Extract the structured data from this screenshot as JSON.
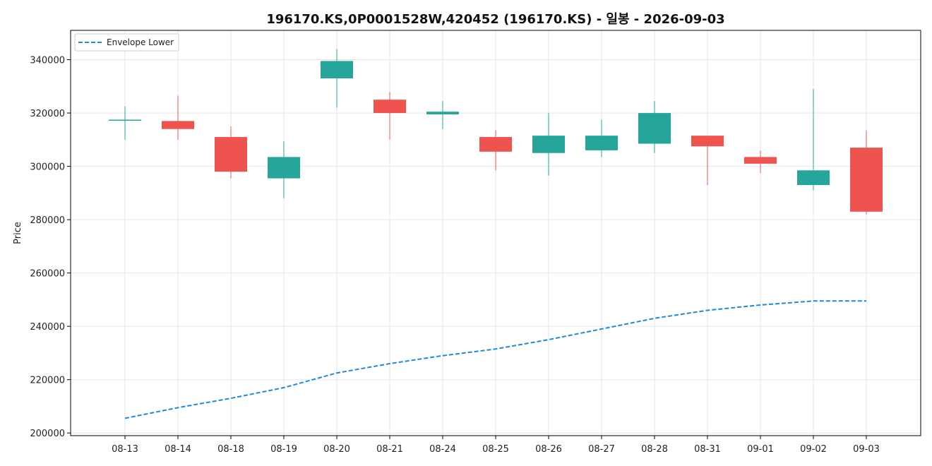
{
  "chart_data": {
    "type": "candlestick",
    "title": "196170.KS,0P0001528W,420452 (196170.KS) - 일봉 - 2026-09-03",
    "xlabel": "",
    "ylabel": "Price",
    "ylim": [
      199000,
      351000
    ],
    "yticks": [
      200000,
      220000,
      240000,
      260000,
      280000,
      300000,
      320000,
      340000
    ],
    "grid": true,
    "legend_position": "top-left",
    "colors": {
      "up": "#26a69a",
      "down": "#ef5350",
      "envelope": "#1e88e5"
    },
    "categories": [
      "08-13",
      "08-14",
      "08-18",
      "08-19",
      "08-20",
      "08-21",
      "08-24",
      "08-25",
      "08-26",
      "08-27",
      "08-28",
      "08-31",
      "09-01",
      "09-02",
      "09-03"
    ],
    "candles": [
      {
        "date": "08-13",
        "open": 317500,
        "high": 322500,
        "low": 310000,
        "close": 317500
      },
      {
        "date": "08-14",
        "open": 317000,
        "high": 326500,
        "low": 310000,
        "close": 314000
      },
      {
        "date": "08-18",
        "open": 311000,
        "high": 315000,
        "low": 295500,
        "close": 298000
      },
      {
        "date": "08-19",
        "open": 295500,
        "high": 309500,
        "low": 288000,
        "close": 303500
      },
      {
        "date": "08-20",
        "open": 333000,
        "high": 344000,
        "low": 322000,
        "close": 339500
      },
      {
        "date": "08-21",
        "open": 325000,
        "high": 328000,
        "low": 310000,
        "close": 320000
      },
      {
        "date": "08-24",
        "open": 319500,
        "high": 324500,
        "low": 314000,
        "close": 320500
      },
      {
        "date": "08-25",
        "open": 311000,
        "high": 313500,
        "low": 298500,
        "close": 305500
      },
      {
        "date": "08-26",
        "open": 305000,
        "high": 320000,
        "low": 296500,
        "close": 311500
      },
      {
        "date": "08-27",
        "open": 306000,
        "high": 317500,
        "low": 303500,
        "close": 311500
      },
      {
        "date": "08-28",
        "open": 308500,
        "high": 324500,
        "low": 305000,
        "close": 320000
      },
      {
        "date": "08-31",
        "open": 311500,
        "high": 311500,
        "low": 293000,
        "close": 307500
      },
      {
        "date": "09-01",
        "open": 303500,
        "high": 306000,
        "low": 297500,
        "close": 301000
      },
      {
        "date": "09-02",
        "open": 293000,
        "high": 329000,
        "low": 291000,
        "close": 298500
      },
      {
        "date": "09-03",
        "open": 307000,
        "high": 313500,
        "low": 282000,
        "close": 283000
      }
    ],
    "series": [
      {
        "name": "Envelope Lower",
        "style": "dashed",
        "values": [
          205500,
          209500,
          213000,
          217000,
          222500,
          226000,
          229000,
          231500,
          235000,
          239000,
          243000,
          246000,
          248000,
          249500,
          249500
        ]
      }
    ]
  }
}
